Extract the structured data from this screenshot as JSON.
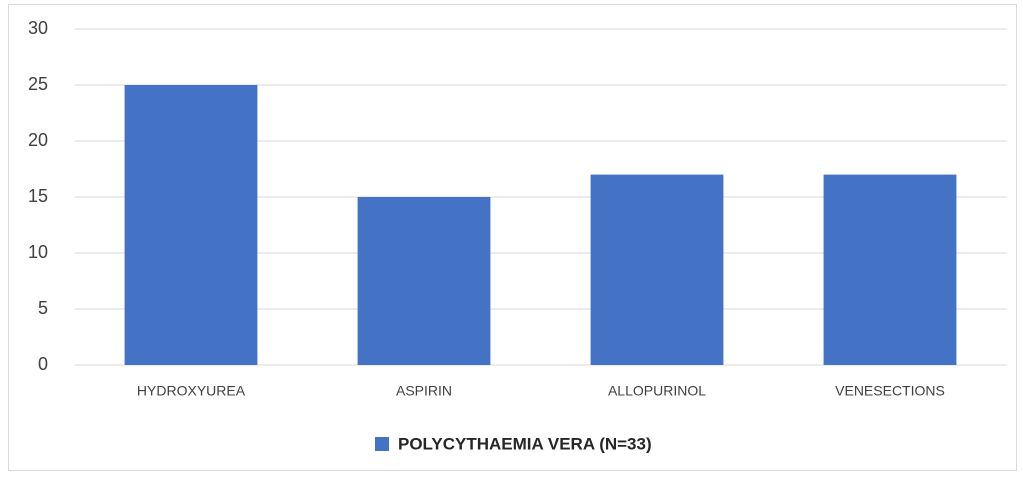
{
  "chart_data": {
    "type": "bar",
    "categories": [
      "HYDROXYUREA",
      "ASPIRIN",
      "ALLOPURINOL",
      "VENESECTIONS"
    ],
    "series": [
      {
        "name": "POLYCYTHAEMIA VERA (N=33)",
        "color": "#4472c4",
        "values": [
          25,
          15,
          17,
          17
        ]
      }
    ],
    "ylim": [
      0,
      30
    ],
    "yticks": [
      0,
      5,
      10,
      15,
      20,
      25,
      30
    ],
    "grid": true,
    "legend": "bottom"
  }
}
